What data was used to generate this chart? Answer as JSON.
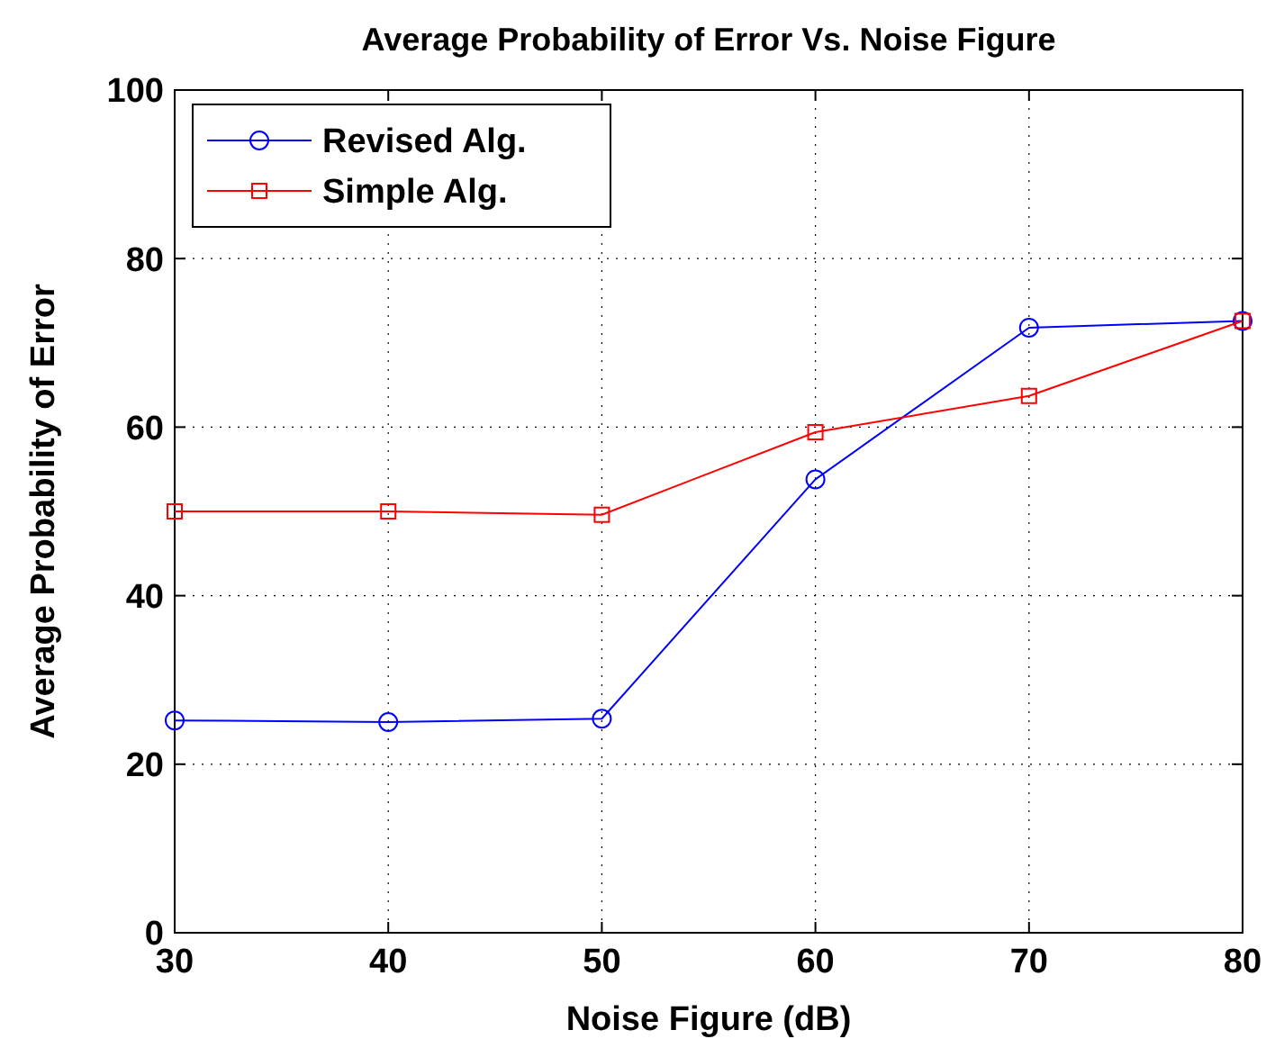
{
  "chart_data": {
    "type": "line",
    "title": "Average Probability of Error Vs. Noise Figure",
    "xlabel": "Noise Figure (dB)",
    "ylabel": "Average Probability of Error",
    "x": [
      30,
      40,
      50,
      60,
      70,
      80
    ],
    "series": [
      {
        "name": "Revised Alg.",
        "color": "#0000ff",
        "marker": "circle",
        "values": [
          25.2,
          25.0,
          25.4,
          53.8,
          71.8,
          72.6
        ]
      },
      {
        "name": "Simple Alg.",
        "color": "#ff0000",
        "marker": "square",
        "values": [
          50.0,
          50.0,
          49.6,
          59.4,
          63.7,
          72.6
        ]
      }
    ],
    "xlim": [
      30,
      80
    ],
    "xticks": [
      30,
      40,
      50,
      60,
      70,
      80
    ],
    "ylim": [
      0,
      100
    ],
    "yticks": [
      0,
      20,
      40,
      60,
      80,
      100
    ],
    "grid": true,
    "legend": "top left",
    "line_style": "solid"
  }
}
